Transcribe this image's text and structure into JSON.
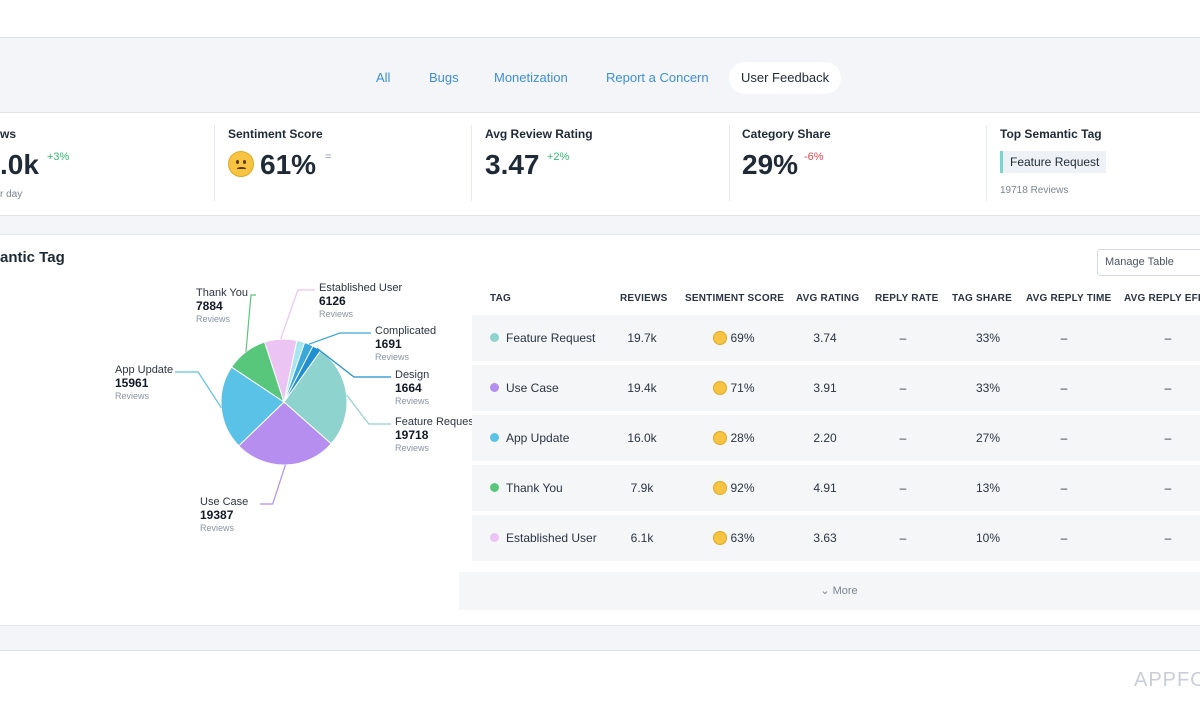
{
  "tabs": [
    {
      "label": "All",
      "active": false
    },
    {
      "label": "Bugs",
      "active": false
    },
    {
      "label": "Monetization",
      "active": false
    },
    {
      "label": "Report a Concern",
      "active": false
    },
    {
      "label": "User Feedback",
      "active": true
    }
  ],
  "kpis": {
    "reviews": {
      "title": "ws",
      "value": ".0k",
      "delta": "+3%",
      "sub": "r day"
    },
    "sentiment": {
      "title": "Sentiment Score",
      "value": "61%",
      "delta": "=",
      "icon": "confused-face-icon"
    },
    "rating": {
      "title": "Avg Review Rating",
      "value": "3.47",
      "delta": "+2%"
    },
    "share": {
      "title": "Category Share",
      "value": "29%",
      "delta": "-6%"
    },
    "top_tag": {
      "title": "Top Semantic Tag",
      "tag": "Feature Request",
      "sub": "19718 Reviews"
    }
  },
  "panel": {
    "title": "antic Tag",
    "manage_label": "Manage Table",
    "more_label": "More"
  },
  "colors": {
    "Feature Request": "#8fd3cf",
    "Use Case": "#b58ef0",
    "App Update": "#5bc2e7",
    "Thank You": "#58c77c",
    "Established User": "#ecc4f4",
    "Complicated": "#3aa8d8",
    "Design": "#1f8fd1",
    "Other": "#a7e6f0",
    "accent": "#3d8fd8"
  },
  "chart_data": {
    "type": "pie",
    "unit": "Reviews",
    "slices": [
      {
        "label": "Feature Request",
        "value": 19718
      },
      {
        "label": "Use Case",
        "value": 19387
      },
      {
        "label": "App Update",
        "value": 15961
      },
      {
        "label": "Thank You",
        "value": 7884
      },
      {
        "label": "Established User",
        "value": 6126
      },
      {
        "label": "",
        "value": 1500
      },
      {
        "label": "Complicated",
        "value": 1691
      },
      {
        "label": "Design",
        "value": 1664
      }
    ],
    "labels": {
      "Thank You": {
        "name": "Thank You",
        "value": "7884",
        "unit": "Reviews"
      },
      "Established User": {
        "name": "Established User",
        "value": "6126",
        "unit": "Reviews"
      },
      "Complicated": {
        "name": "Complicated",
        "value": "1691",
        "unit": "Reviews"
      },
      "Design": {
        "name": "Design",
        "value": "1664",
        "unit": "Reviews"
      },
      "Feature Request": {
        "name": "Feature Reques",
        "value": "19718",
        "unit": "Reviews"
      },
      "App Update": {
        "name": "App Update",
        "value": "15961",
        "unit": "Reviews"
      },
      "Use Case": {
        "name": "Use Case",
        "value": "19387",
        "unit": "Reviews"
      }
    }
  },
  "table": {
    "headers": [
      "TAG",
      "REVIEWS",
      "SENTIMENT SCORE",
      "AVG RATING",
      "REPLY RATE",
      "TAG SHARE",
      "AVG REPLY TIME",
      "AVG REPLY EFFE"
    ],
    "rows": [
      {
        "tag": "Feature Request",
        "reviews": "19.7k",
        "sentiment": "69%",
        "rating": "3.74",
        "reply_rate": "–",
        "share": "33%",
        "reply_time": "–",
        "reply_eff": "–"
      },
      {
        "tag": "Use Case",
        "reviews": "19.4k",
        "sentiment": "71%",
        "rating": "3.91",
        "reply_rate": "–",
        "share": "33%",
        "reply_time": "–",
        "reply_eff": "–"
      },
      {
        "tag": "App Update",
        "reviews": "16.0k",
        "sentiment": "28%",
        "rating": "2.20",
        "reply_rate": "–",
        "share": "27%",
        "reply_time": "–",
        "reply_eff": "–"
      },
      {
        "tag": "Thank You",
        "reviews": "7.9k",
        "sentiment": "92%",
        "rating": "4.91",
        "reply_rate": "–",
        "share": "13%",
        "reply_time": "–",
        "reply_eff": "–"
      },
      {
        "tag": "Established User",
        "reviews": "6.1k",
        "sentiment": "63%",
        "rating": "3.63",
        "reply_rate": "–",
        "share": "10%",
        "reply_time": "–",
        "reply_eff": "–"
      }
    ]
  },
  "watermark": "APPFO"
}
